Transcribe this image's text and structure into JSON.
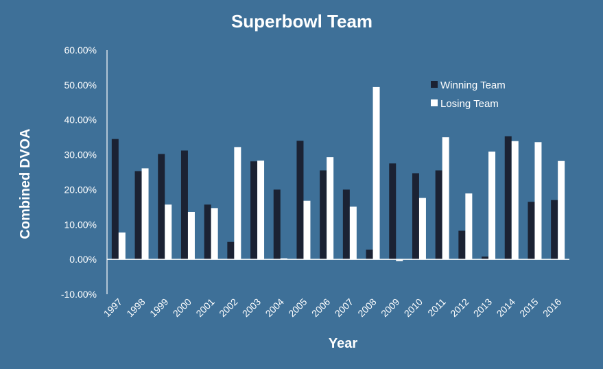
{
  "chart_data": {
    "type": "bar",
    "title": "Superbowl Team",
    "xlabel": "Year",
    "ylabel": "Combined DVOA",
    "ylim": [
      -0.1,
      0.6
    ],
    "yticks": [
      "-10.00%",
      "0.00%",
      "10.00%",
      "20.00%",
      "30.00%",
      "40.00%",
      "50.00%",
      "60.00%"
    ],
    "grid": false,
    "legend_position": "top-right",
    "categories": [
      "1997",
      "1998",
      "1999",
      "2000",
      "2001",
      "2002",
      "2003",
      "2004",
      "2005",
      "2006",
      "2007",
      "2008",
      "2009",
      "2010",
      "2011",
      "2012",
      "2013",
      "2014",
      "2015",
      "2016"
    ],
    "series": [
      {
        "name": "Winning Team",
        "color": "#1b2233",
        "values": [
          0.345,
          0.253,
          0.302,
          0.312,
          0.157,
          0.05,
          0.281,
          0.2,
          0.34,
          0.255,
          0.2,
          0.028,
          0.275,
          0.247,
          0.255,
          0.082,
          0.008,
          0.353,
          0.165,
          0.17
        ]
      },
      {
        "name": "Losing Team",
        "color": "#ffffff",
        "values": [
          0.077,
          0.261,
          0.157,
          0.136,
          0.147,
          0.322,
          0.283,
          0.003,
          0.168,
          0.293,
          0.151,
          0.494,
          -0.005,
          0.176,
          0.35,
          0.189,
          0.309,
          0.339,
          0.336,
          0.282
        ]
      }
    ]
  }
}
